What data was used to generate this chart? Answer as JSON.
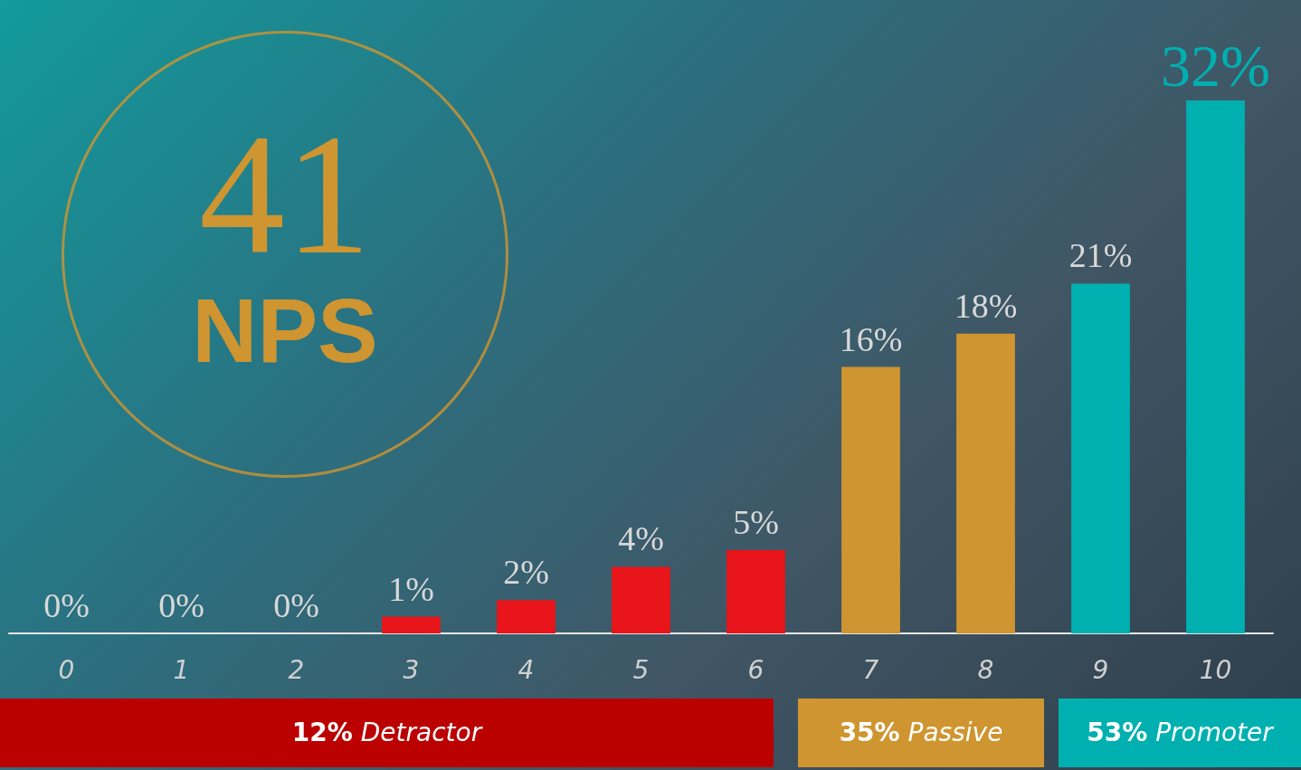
{
  "chart_data": {
    "type": "bar",
    "categories": [
      "0",
      "1",
      "2",
      "3",
      "4",
      "5",
      "6",
      "7",
      "8",
      "9",
      "10"
    ],
    "values": [
      0,
      0,
      0,
      1,
      2,
      4,
      5,
      16,
      18,
      21,
      32
    ],
    "colors": [
      "#e8151a",
      "#e8151a",
      "#e8151a",
      "#e8151a",
      "#e8151a",
      "#e8151a",
      "#e8151a",
      "#cf9530",
      "#cf9530",
      "#00b0b0",
      "#00b0b0"
    ],
    "value_labels": [
      "0%",
      "0%",
      "0%",
      "1%",
      "2%",
      "4%",
      "5%",
      "16%",
      "18%",
      "21%",
      "32%"
    ],
    "annotations": [
      "41",
      "NPS",
      "12% Detractor",
      "35% Passive",
      "53% Promoter"
    ],
    "grid": false
  }
}
